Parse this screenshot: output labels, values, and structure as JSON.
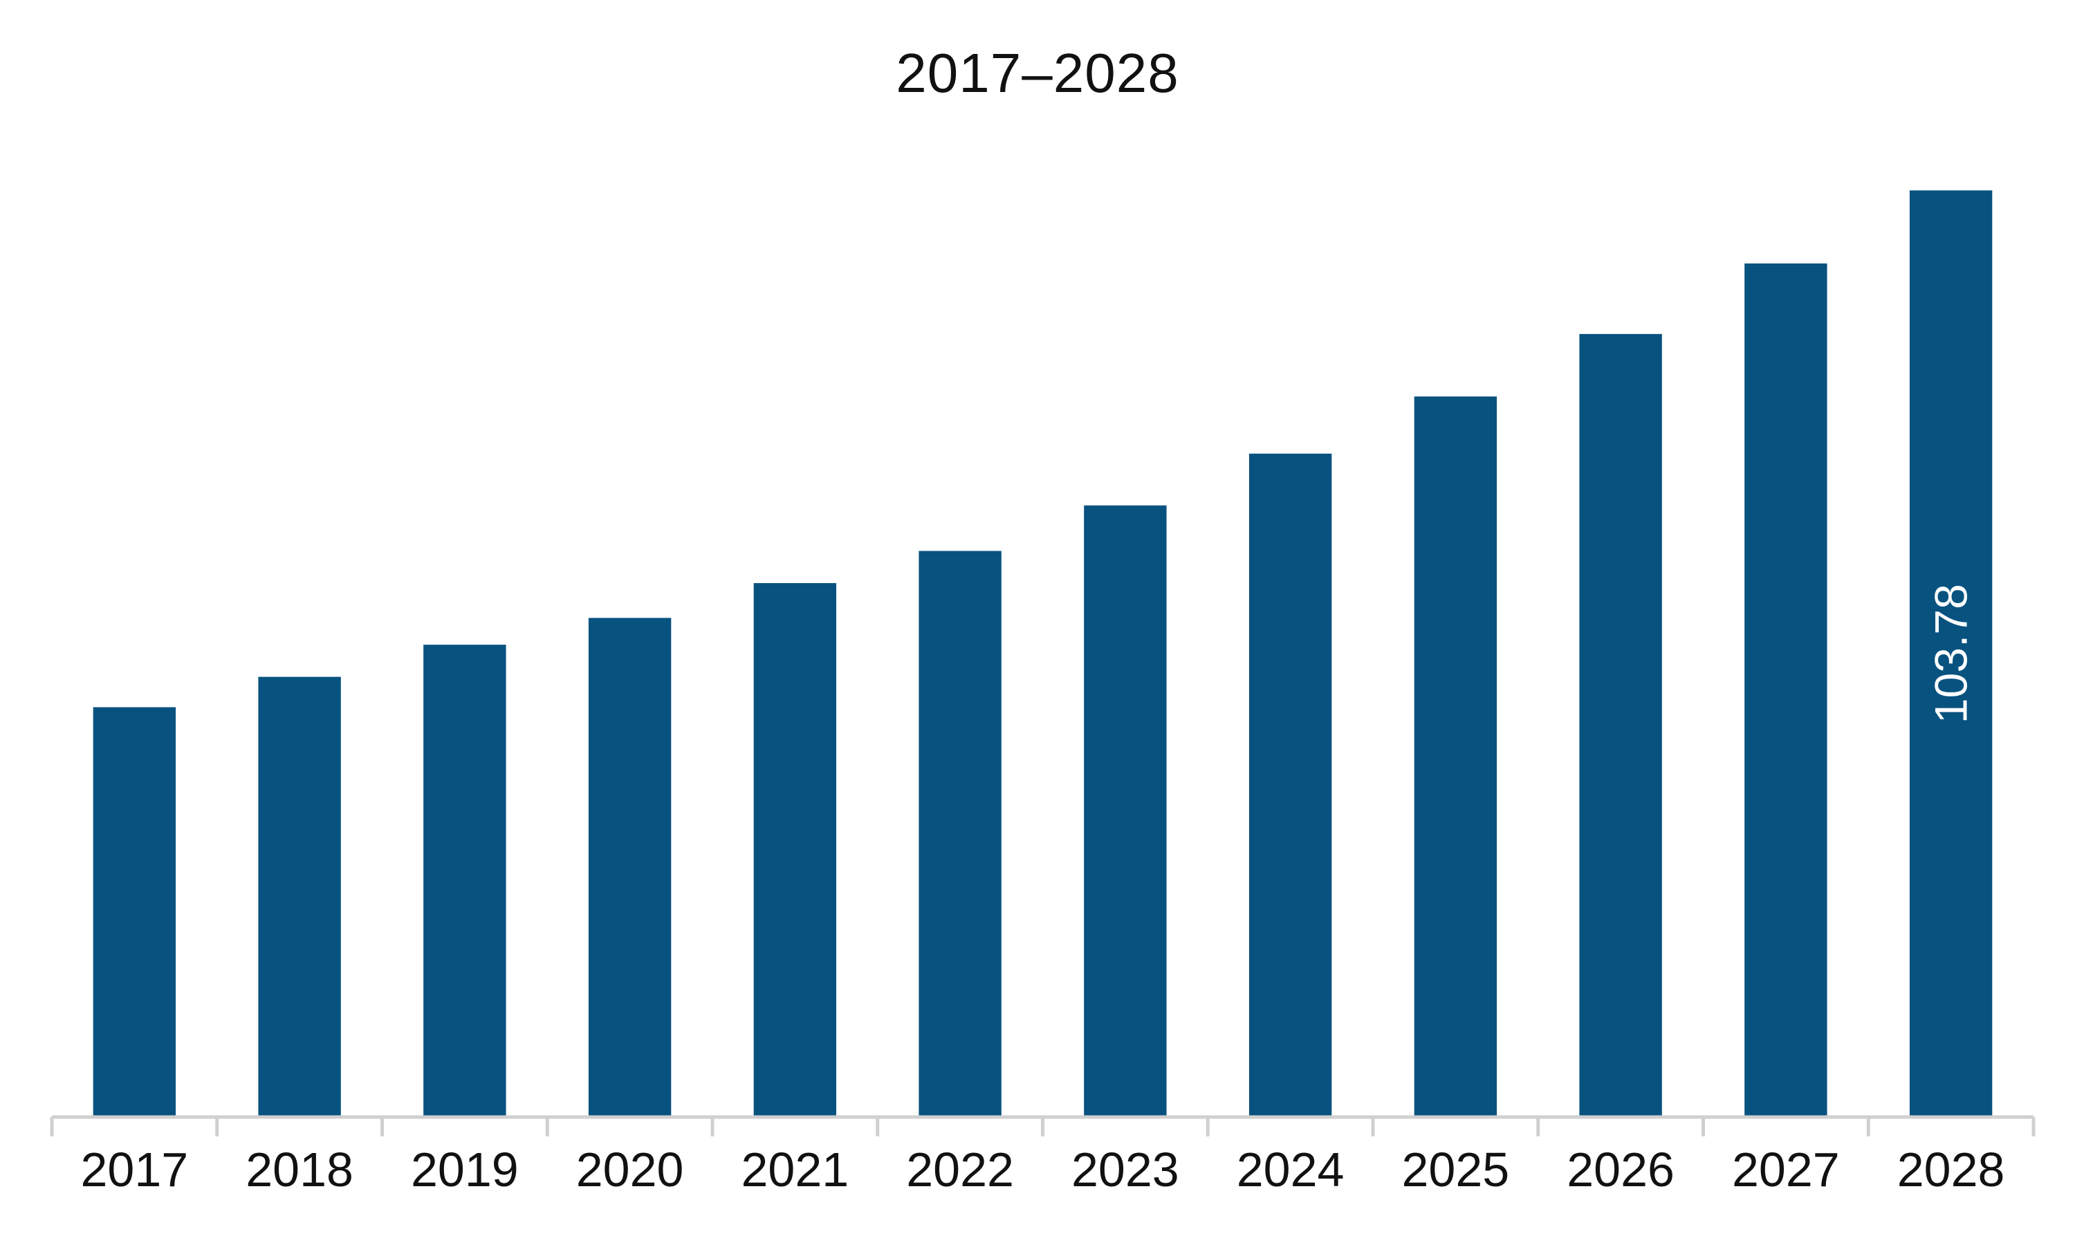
{
  "chart_data": {
    "type": "bar",
    "title": "2017–2028",
    "xlabel": "",
    "ylabel": "",
    "categories": [
      "2017",
      "2018",
      "2019",
      "2020",
      "2021",
      "2022",
      "2023",
      "2024",
      "2025",
      "2026",
      "2027",
      "2028"
    ],
    "values": [
      45.9,
      49.3,
      52.9,
      55.9,
      59.8,
      63.4,
      68.5,
      74.3,
      80.7,
      87.7,
      95.6,
      103.78
    ],
    "data_labels": [
      null,
      null,
      null,
      null,
      null,
      null,
      null,
      null,
      null,
      null,
      null,
      "103.78"
    ],
    "ylim": [
      0,
      110
    ],
    "grid": false,
    "legend": "none",
    "bar_color": "#08527f",
    "axis_color": "#d0d0d0"
  }
}
